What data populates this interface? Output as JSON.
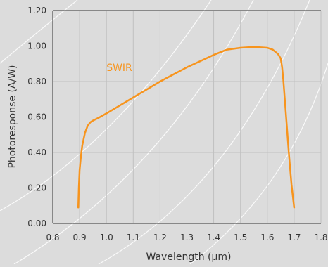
{
  "chart_data": {
    "type": "line",
    "title": "",
    "xlabel": "Wavelength (µm)",
    "ylabel": "Photoresponse (A/W)",
    "xlim": [
      0.8,
      1.8
    ],
    "ylim": [
      0.0,
      1.2
    ],
    "x_ticks": [
      0.8,
      0.9,
      1.0,
      1.1,
      1.2,
      1.3,
      1.4,
      1.5,
      1.6,
      1.7,
      1.8
    ],
    "x_tick_labels": [
      "0.8",
      "0.9",
      "1.0",
      "1.1",
      "1.2",
      "1.3",
      "1.4",
      "1.5",
      "1.6",
      "1.7",
      "1.8"
    ],
    "y_ticks": [
      0.0,
      0.2,
      0.4,
      0.6,
      0.8,
      1.0,
      1.2
    ],
    "y_tick_labels": [
      "0.00",
      "0.20",
      "0.40",
      "0.60",
      "0.80",
      "1.00",
      "1.20"
    ],
    "grid": true,
    "legend": "none",
    "annotations": [
      {
        "text": "SWIR",
        "x": 1.0,
        "y": 0.88
      }
    ],
    "series": [
      {
        "name": "SWIR",
        "color": "#f7941d",
        "x": [
          0.895,
          0.897,
          0.9,
          0.905,
          0.91,
          0.92,
          0.93,
          0.94,
          0.95,
          0.97,
          1.0,
          1.05,
          1.1,
          1.15,
          1.2,
          1.25,
          1.3,
          1.35,
          1.4,
          1.45,
          1.5,
          1.55,
          1.6,
          1.62,
          1.64,
          1.65,
          1.655,
          1.66,
          1.67,
          1.68,
          1.69,
          1.7
        ],
        "y": [
          0.09,
          0.2,
          0.3,
          0.38,
          0.44,
          0.51,
          0.55,
          0.57,
          0.58,
          0.595,
          0.62,
          0.665,
          0.71,
          0.755,
          0.8,
          0.84,
          0.88,
          0.915,
          0.95,
          0.98,
          0.99,
          0.995,
          0.99,
          0.98,
          0.955,
          0.93,
          0.88,
          0.8,
          0.6,
          0.4,
          0.22,
          0.09
        ]
      }
    ]
  },
  "colors": {
    "background": "#dcdcdc",
    "grid": "#c0c0c0",
    "axis": "#333333",
    "curve": "#f7941d",
    "decorative_arcs": "#ffffff"
  }
}
